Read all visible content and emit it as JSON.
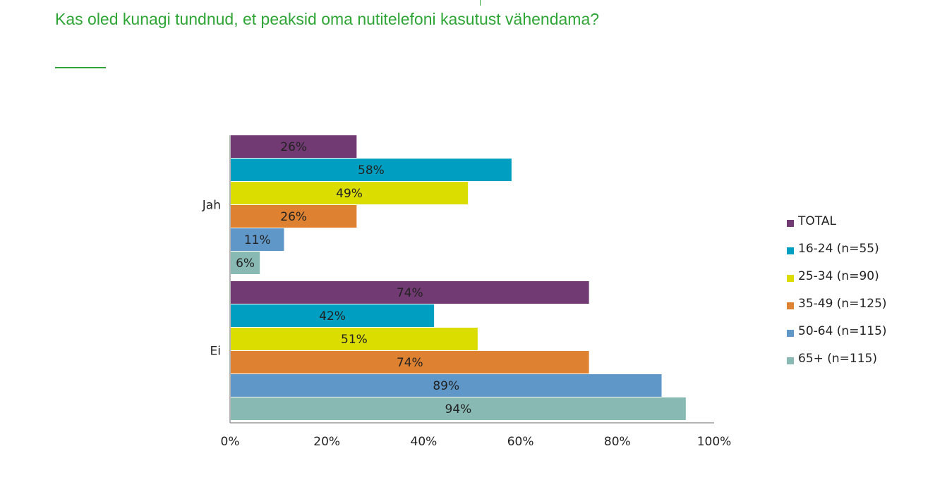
{
  "title": "Kas oled kunagi tundnud, et peaksid oma nutitelefoni kasutust vähendama?",
  "chart_data": {
    "type": "bar",
    "orientation": "horizontal",
    "title": "Kas oled kunagi tundnud, et peaksid oma nutitelefoni kasutust vähendama?",
    "categories": [
      "Jah",
      "Ei"
    ],
    "series": [
      {
        "name": "TOTAL",
        "color": "#713a72",
        "values": [
          26,
          74
        ]
      },
      {
        "name": "16-24 (n=55)",
        "color": "#009fc2",
        "values": [
          58,
          42
        ]
      },
      {
        "name": "25-34 (n=90)",
        "color": "#dbdc00",
        "values": [
          49,
          51
        ]
      },
      {
        "name": "35-49 (n=125)",
        "color": "#de8232",
        "values": [
          26,
          74
        ]
      },
      {
        "name": "50-64 (n=115)",
        "color": "#5f97c8",
        "values": [
          11,
          89
        ]
      },
      {
        "name": "65+ (n=115)",
        "color": "#88b9b3",
        "values": [
          6,
          94
        ]
      }
    ],
    "data_labels": [
      [
        "26%",
        "58%",
        "49%",
        "26%",
        "11%",
        "6%"
      ],
      [
        "74%",
        "42%",
        "51%",
        "74%",
        "89%",
        "94%"
      ]
    ],
    "xticks": [
      "0%",
      "20%",
      "40%",
      "60%",
      "80%",
      "100%"
    ],
    "xlim": [
      0,
      100
    ],
    "grid": false,
    "legend_position": "right"
  }
}
